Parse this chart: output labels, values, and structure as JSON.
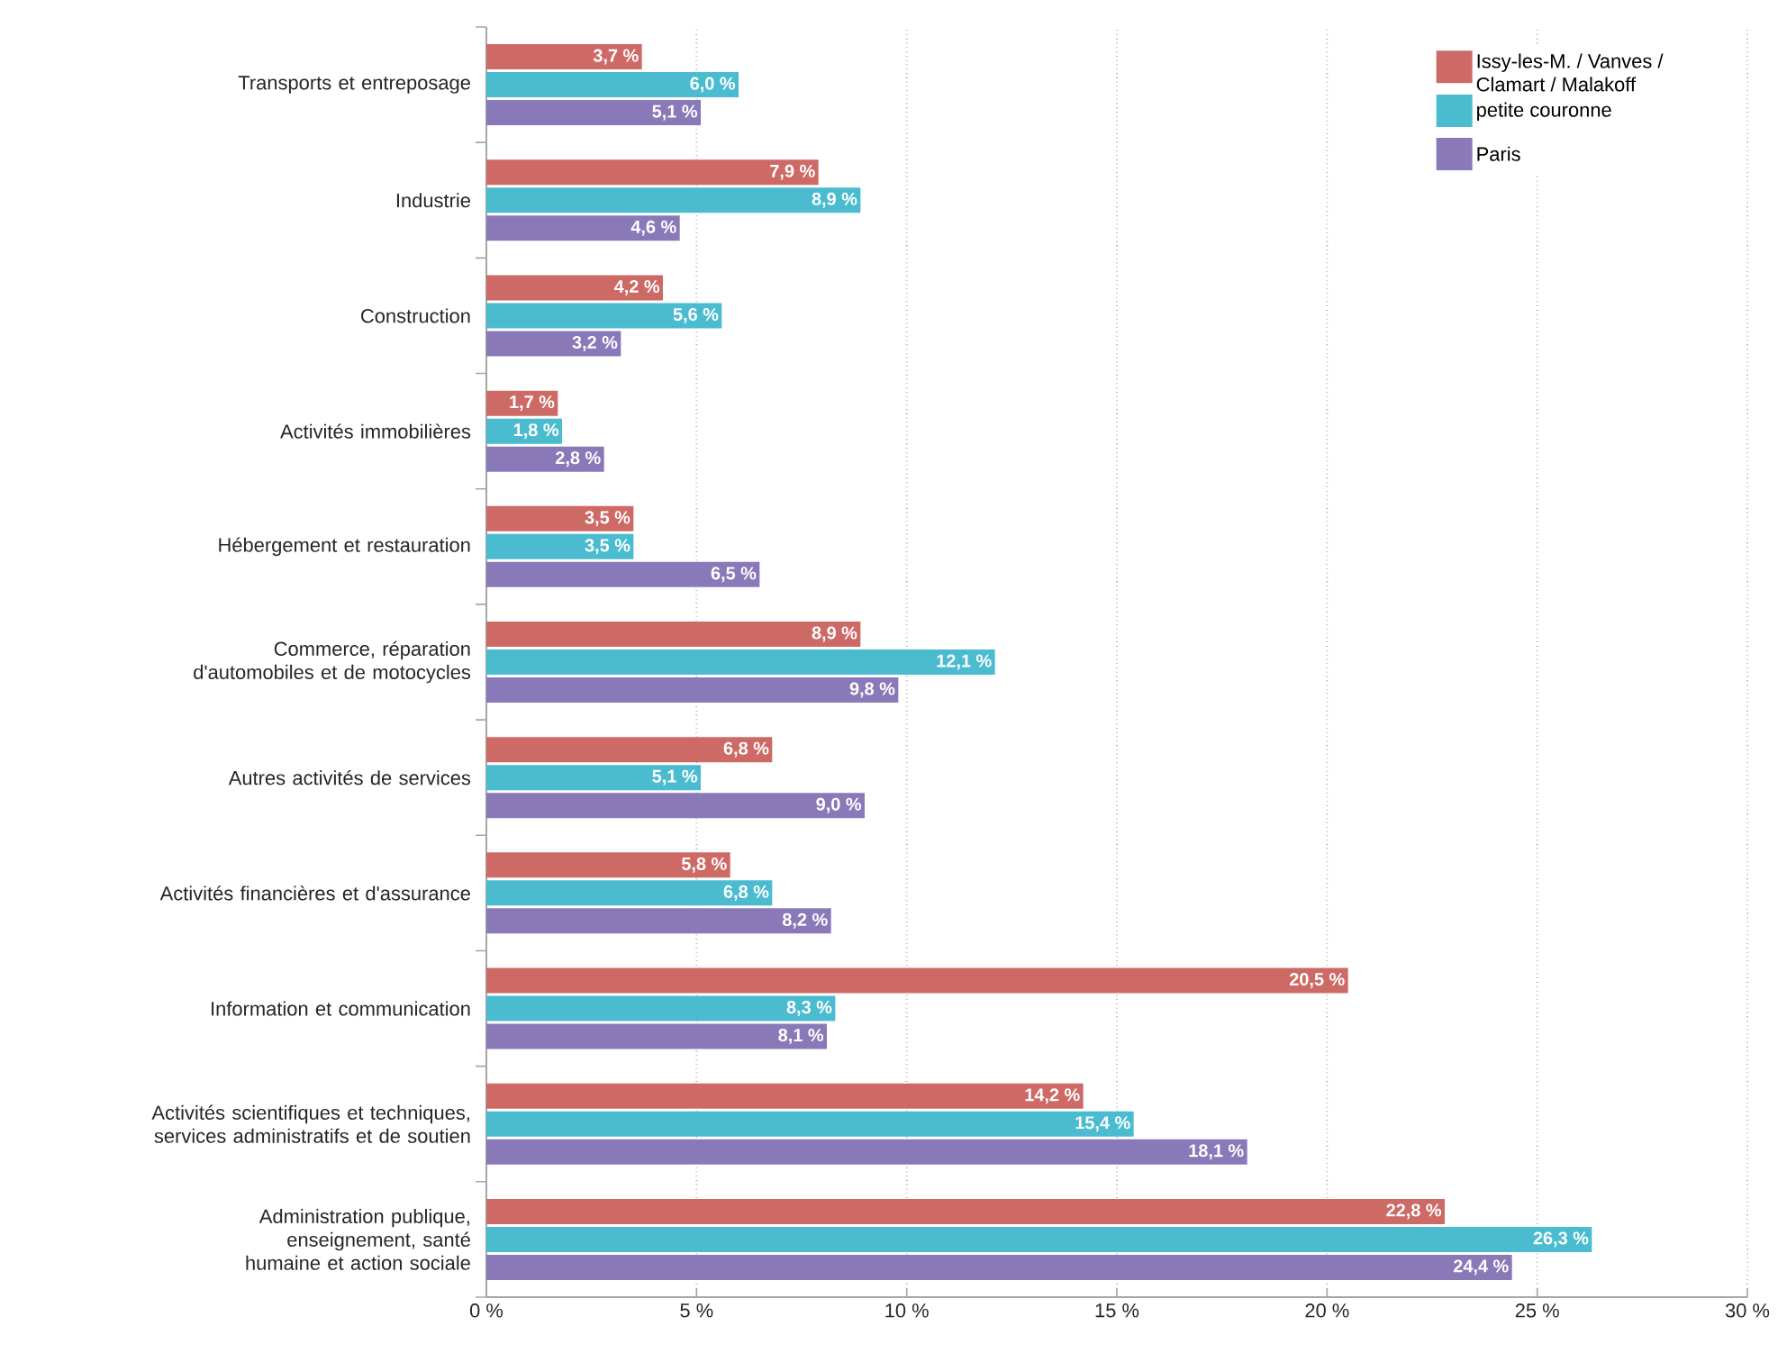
{
  "chart_data": {
    "type": "bar",
    "orientation": "horizontal",
    "categories": [
      "Transports et entreposage",
      "Industrie",
      "Construction",
      "Activités immobilières",
      "Hébergement et restauration",
      "Commerce, réparation d'automobiles et de motocycles",
      "Autres activités de services",
      "Activités financières et d'assurance",
      "Information et communication",
      "Activités scientifiques et techniques, services administratifs et de soutien",
      "Administration publique, enseignement, santé humaine et action sociale"
    ],
    "series": [
      {
        "name": "Issy-les-M. / Vanves / Clamart / Malakoff",
        "color": "#cd6a66",
        "values": [
          3.7,
          7.9,
          4.2,
          1.7,
          3.5,
          8.9,
          6.8,
          5.8,
          20.5,
          14.2,
          22.8
        ],
        "value_labels": [
          "3,7 %",
          "7,9 %",
          "4,2 %",
          "1,7 %",
          "3,5 %",
          "8,9 %",
          "6,8 %",
          "5,8 %",
          "20,5 %",
          "14,2 %",
          "22,8 %"
        ]
      },
      {
        "name": "petite couronne",
        "color": "#4bbcd0",
        "values": [
          6.0,
          8.9,
          5.6,
          1.8,
          3.5,
          12.1,
          5.1,
          6.8,
          8.3,
          15.4,
          26.3
        ],
        "value_labels": [
          "6,0 %",
          "8,9 %",
          "5,6 %",
          "1,8 %",
          "3,5 %",
          "12,1 %",
          "5,1 %",
          "6,8 %",
          "8,3 %",
          "15,4 %",
          "26,3 %"
        ]
      },
      {
        "name": "Paris",
        "color": "#8a79b8",
        "values": [
          5.1,
          4.6,
          3.2,
          2.8,
          6.5,
          9.8,
          9.0,
          8.2,
          8.1,
          18.1,
          24.4
        ],
        "value_labels": [
          "5,1 %",
          "4,6 %",
          "3,2 %",
          "2,8 %",
          "6,5 %",
          "9,8 %",
          "9,0 %",
          "8,2 %",
          "8,1 %",
          "18,1 %",
          "24,4 %"
        ]
      }
    ],
    "xlim": [
      0,
      30
    ],
    "xticks": [
      {
        "value": 0,
        "label": "0 %"
      },
      {
        "value": 5,
        "label": "5 %"
      },
      {
        "value": 10,
        "label": "10 %"
      },
      {
        "value": 15,
        "label": "15 %"
      },
      {
        "value": 20,
        "label": "20 %"
      },
      {
        "value": 25,
        "label": "25 %"
      },
      {
        "value": 30,
        "label": "30 %"
      }
    ],
    "grid": "x",
    "legend": "top right"
  }
}
